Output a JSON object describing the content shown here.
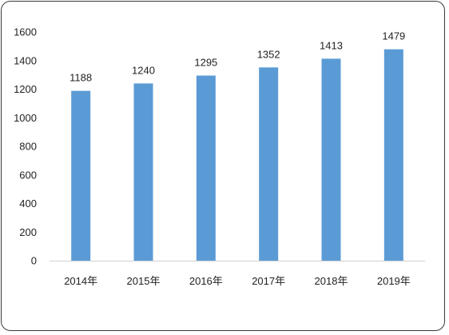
{
  "chart_data": {
    "type": "bar",
    "title": "",
    "xlabel": "",
    "ylabel": "",
    "categories": [
      "2014年",
      "2015年",
      "2016年",
      "2017年",
      "2018年",
      "2019年"
    ],
    "values": [
      1188,
      1240,
      1295,
      1352,
      1413,
      1479
    ],
    "ylim": [
      0,
      1600
    ],
    "yticks": [
      0,
      200,
      400,
      600,
      800,
      1000,
      1200,
      1400,
      1600
    ],
    "grid": false,
    "legend": "none",
    "data_labels": true,
    "bar_color": "#5b9bd5",
    "axis_color": "#d0d0d0"
  }
}
